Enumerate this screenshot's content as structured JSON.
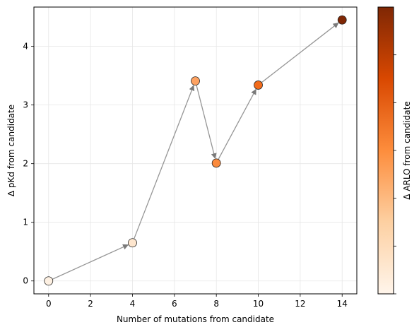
{
  "chart_data": {
    "type": "scatter",
    "xlabel": "Number of mutations from candidate",
    "ylabel": "Δ pKd from candidate",
    "colorbar_label": "Δ ARLO from candidate",
    "xlim": [
      -0.7,
      14.7
    ],
    "ylim": [
      -0.22,
      4.67
    ],
    "x_ticks": [
      0,
      2,
      4,
      6,
      8,
      10,
      12,
      14
    ],
    "y_ticks": [
      0,
      1,
      2,
      3,
      4
    ],
    "grid": true,
    "colormap": [
      "#fff5eb",
      "#fdd0a2",
      "#fd8d3c",
      "#d94801",
      "#7f2704"
    ],
    "points": [
      {
        "x": 0,
        "y": 0.0,
        "c": 0.02,
        "color": "#fdf0e2"
      },
      {
        "x": 4,
        "y": 0.65,
        "c": 0.08,
        "color": "#fee6ce"
      },
      {
        "x": 7,
        "y": 3.41,
        "c": 0.45,
        "color": "#fda262"
      },
      {
        "x": 8,
        "y": 2.01,
        "c": 0.55,
        "color": "#fb8a3c"
      },
      {
        "x": 10,
        "y": 3.34,
        "c": 0.68,
        "color": "#f26b1b"
      },
      {
        "x": 14,
        "y": 4.45,
        "c": 1.0,
        "color": "#7f2704"
      }
    ],
    "arrow_color": "#969696"
  }
}
